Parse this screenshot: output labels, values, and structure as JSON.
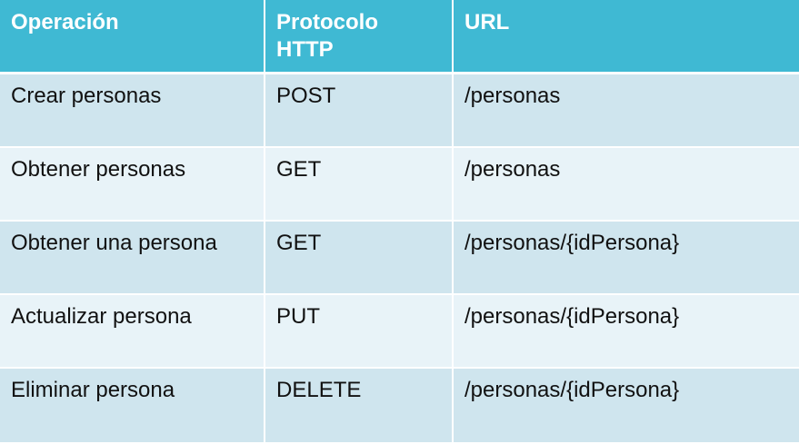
{
  "table": {
    "headers": {
      "operation": "Operación",
      "protocol": "Protocolo HTTP",
      "url": "URL"
    },
    "rows": [
      {
        "operation": "Crear personas",
        "protocol": "POST",
        "url": "/personas"
      },
      {
        "operation": "Obtener personas",
        "protocol": "GET",
        "url": "/personas"
      },
      {
        "operation": "Obtener una persona",
        "protocol": "GET",
        "url": "/personas/{idPersona}"
      },
      {
        "operation": "Actualizar persona",
        "protocol": "PUT",
        "url": "/personas/{idPersona}"
      },
      {
        "operation": "Eliminar persona",
        "protocol": "DELETE",
        "url": "/personas/{idPersona}"
      }
    ]
  },
  "colors": {
    "header_bg": "#3fb9d3",
    "row_odd_bg": "#cfe5ee",
    "row_even_bg": "#e8f3f8",
    "header_text": "#ffffff",
    "body_text": "#111111"
  }
}
